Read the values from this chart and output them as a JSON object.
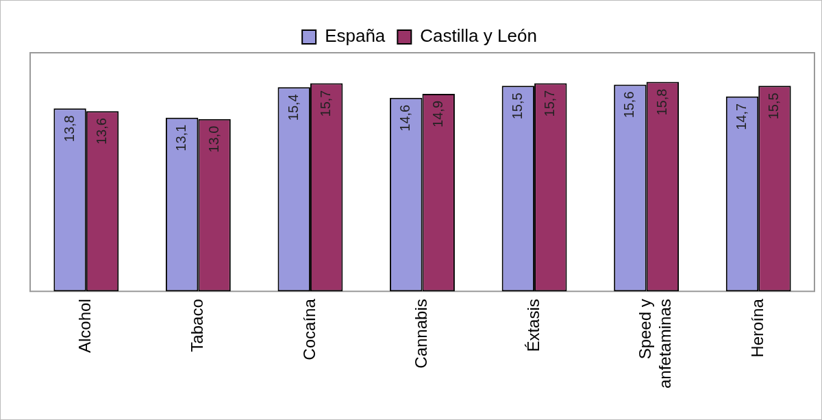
{
  "chart_data": {
    "type": "bar",
    "categories": [
      "Alcohol",
      "Tabaco",
      "Cocaína",
      "Cannabis",
      "Éxtasis",
      "Speed y anfetaminas",
      "Heroína"
    ],
    "series": [
      {
        "name": "España",
        "color": "#9999dd",
        "values": [
          13.8,
          13.1,
          15.4,
          14.6,
          15.5,
          15.6,
          14.7
        ],
        "value_labels": [
          "13,8",
          "13,1",
          "15,4",
          "14,6",
          "15,5",
          "15,6",
          "14,7"
        ]
      },
      {
        "name": "Castilla y León",
        "color": "#993366",
        "values": [
          13.6,
          13.0,
          15.7,
          14.9,
          15.7,
          15.8,
          15.5
        ],
        "value_labels": [
          "13,6",
          "13,0",
          "15,7",
          "14,9",
          "15,7",
          "15,8",
          "15,5"
        ]
      }
    ],
    "ylim": [
      0,
      18
    ],
    "tick_labels": "x",
    "legend": "top",
    "grid": false
  }
}
